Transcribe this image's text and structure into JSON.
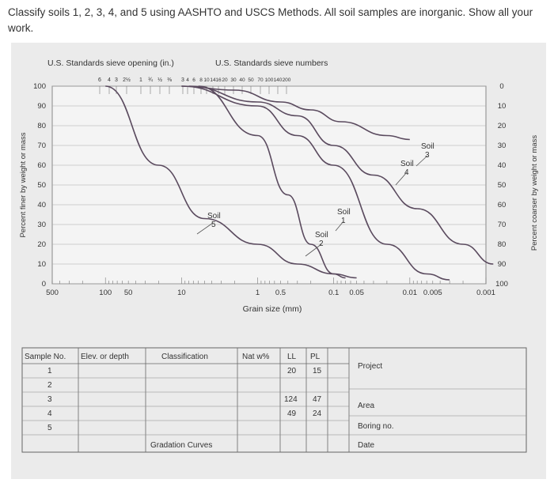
{
  "question": "Classify soils 1, 2, 3, 4, and 5 using AASHTO and USCS Methods. All soil samples are inorganic. Show all your work.",
  "chart": {
    "top_label_in": "U.S. Standards sieve opening (in.)",
    "top_label_num": "U.S. Standards sieve numbers",
    "inch_sieves": [
      "6",
      "4",
      "3",
      "2½",
      "1",
      "¾",
      "½",
      "⅜",
      "3"
    ],
    "number_sieves": [
      "4",
      "6",
      "8",
      "10",
      "14",
      "16",
      "20",
      "30",
      "40",
      "50",
      "70",
      "100",
      "140",
      "200"
    ],
    "y_left_label": "Percent finer by weight or mass",
    "y_right_label": "Percent coarser by weight or mass",
    "x_label": "Grain size (mm)",
    "x_ticks": [
      "500",
      "100",
      "50",
      "10",
      "1",
      "0.5",
      "0.1",
      "0.05",
      "0.01",
      "0.005",
      "0.001"
    ],
    "y_left_ticks": [
      "0",
      "10",
      "20",
      "30",
      "40",
      "50",
      "60",
      "70",
      "80",
      "90",
      "100"
    ],
    "y_right_ticks": [
      "100",
      "90",
      "80",
      "70",
      "60",
      "50",
      "40",
      "30",
      "20",
      "10",
      "0"
    ],
    "soil_labels": [
      {
        "name": "Soil",
        "num": "1"
      },
      {
        "name": "Soil",
        "num": "2"
      },
      {
        "name": "Soil",
        "num": "3"
      },
      {
        "name": "Soil",
        "num": "4"
      },
      {
        "name": "Soil",
        "num": "5"
      }
    ]
  },
  "curves": [
    {
      "soil": "1",
      "points": [
        [
          10,
          100
        ],
        [
          1,
          90
        ],
        [
          0.3,
          75
        ],
        [
          0.1,
          60
        ],
        [
          0.02,
          20
        ],
        [
          0.006,
          5
        ],
        [
          0.003,
          2
        ]
      ]
    },
    {
      "soil": "2",
      "points": [
        [
          6,
          100
        ],
        [
          1,
          75
        ],
        [
          0.4,
          45
        ],
        [
          0.2,
          20
        ],
        [
          0.1,
          5
        ],
        [
          0.07,
          3
        ]
      ]
    },
    {
      "soil": "3",
      "points": [
        [
          10,
          100
        ],
        [
          2,
          98
        ],
        [
          0.5,
          92
        ],
        [
          0.2,
          88
        ],
        [
          0.08,
          82
        ],
        [
          0.02,
          75
        ],
        [
          0.01,
          73
        ]
      ]
    },
    {
      "soil": "4",
      "points": [
        [
          8,
          100
        ],
        [
          1,
          92
        ],
        [
          0.3,
          85
        ],
        [
          0.1,
          70
        ],
        [
          0.03,
          55
        ],
        [
          0.008,
          38
        ],
        [
          0.002,
          20
        ],
        [
          0.0008,
          10
        ]
      ]
    },
    {
      "soil": "5",
      "points": [
        [
          100,
          100
        ],
        [
          20,
          60
        ],
        [
          5,
          33
        ],
        [
          1,
          20
        ],
        [
          0.3,
          10
        ],
        [
          0.1,
          5
        ],
        [
          0.05,
          3
        ]
      ]
    }
  ],
  "table": {
    "headers": [
      "Sample No.",
      "Elev. or depth",
      "Classification",
      "Nat w%",
      "LL",
      "PL"
    ],
    "rows": [
      {
        "sample": "1",
        "ll": "20",
        "pl": "15"
      },
      {
        "sample": "2",
        "ll": "",
        "pl": ""
      },
      {
        "sample": "3",
        "ll": "124",
        "pl": "47"
      },
      {
        "sample": "4",
        "ll": "49",
        "pl": "24"
      },
      {
        "sample": "5",
        "ll": "",
        "pl": ""
      }
    ],
    "footer": "Gradation Curves",
    "side": {
      "project": "Project",
      "area": "Area",
      "boring": "Boring no.",
      "date": "Date"
    }
  }
}
